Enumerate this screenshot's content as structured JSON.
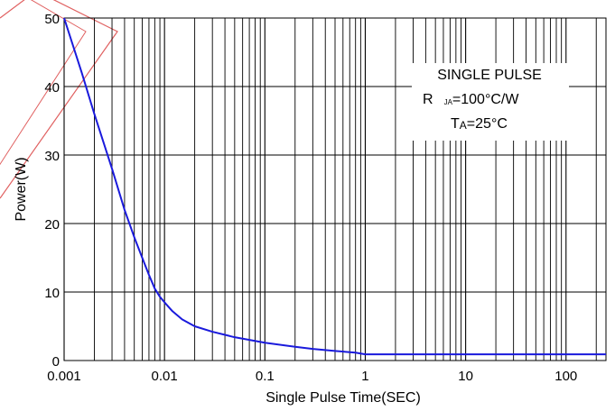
{
  "chart_data": {
    "type": "line",
    "x_scale": "log",
    "xlim": [
      0.001,
      250
    ],
    "ylim": [
      0,
      50
    ],
    "xlabel": "Single Pulse Time(SEC)",
    "ylabel": "Power(W)",
    "x_ticks": [
      {
        "value": 0.001,
        "label": "0.001"
      },
      {
        "value": 0.01,
        "label": "0.01"
      },
      {
        "value": 0.1,
        "label": "0.1"
      },
      {
        "value": 1,
        "label": "1"
      },
      {
        "value": 10,
        "label": "10"
      },
      {
        "value": 100,
        "label": "100"
      }
    ],
    "y_ticks": [
      {
        "value": 0,
        "label": "0"
      },
      {
        "value": 10,
        "label": "10"
      },
      {
        "value": 20,
        "label": "20"
      },
      {
        "value": 30,
        "label": "30"
      },
      {
        "value": 40,
        "label": "40"
      },
      {
        "value": 50,
        "label": "50"
      }
    ],
    "grid": true,
    "series": [
      {
        "color": "#1a1adc",
        "x": [
          0.001,
          0.0015,
          0.002,
          0.003,
          0.004,
          0.005,
          0.006,
          0.007,
          0.008,
          0.009,
          0.01,
          0.012,
          0.015,
          0.02,
          0.03,
          0.05,
          0.1,
          0.2,
          0.3,
          0.5,
          0.8,
          1,
          2,
          5,
          10,
          50,
          100,
          250
        ],
        "y": [
          50,
          42,
          36,
          28,
          22,
          18,
          15,
          12.5,
          10.5,
          9.3,
          8.5,
          7.2,
          6.0,
          5.0,
          4.2,
          3.4,
          2.6,
          2.0,
          1.7,
          1.4,
          1.15,
          0.9,
          0.9,
          0.9,
          0.9,
          0.9,
          0.9,
          0.9
        ]
      }
    ],
    "legend": {
      "placement": "top-right",
      "line1": "SINGLE PULSE",
      "line2_main": "R",
      "line2_sub": "JA",
      "line2_value": "=100°C/W",
      "line3_main": "T",
      "line3_sub": "A",
      "line3_value": "=25°C"
    },
    "watermark_color": "#e06060"
  }
}
